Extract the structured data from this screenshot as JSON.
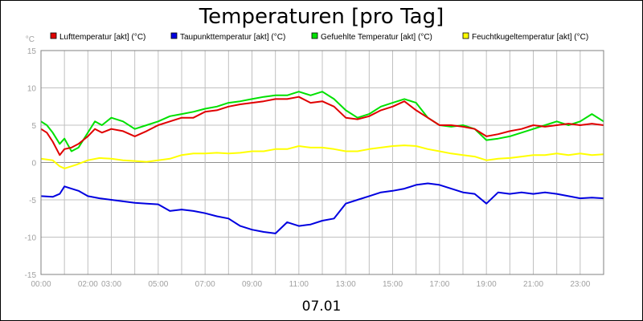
{
  "chart_data": {
    "type": "line",
    "title": "Temperaturen [pro Tag]",
    "subtitle": "07.01",
    "ylabel": "°C",
    "xlabel": "",
    "x_ticks": [
      "00:00",
      "02:00",
      "03:00",
      "05:00",
      "07:00",
      "09:00",
      "11:00",
      "13:00",
      "15:00",
      "17:00",
      "19:00",
      "21:00",
      "23:00"
    ],
    "x_tick_hours": [
      0,
      2,
      3,
      5,
      7,
      9,
      11,
      13,
      15,
      17,
      19,
      21,
      23
    ],
    "xlim_hours": [
      0,
      24
    ],
    "y_ticks": [
      15,
      10,
      5,
      0,
      -5,
      -10,
      -15
    ],
    "ylim": [
      -15,
      15
    ],
    "grid": true,
    "legend_position": "top",
    "series": [
      {
        "name": "Lufttemperatur [akt] (°C)",
        "color": "#e00000",
        "x": [
          0,
          0.25,
          0.5,
          0.8,
          1.0,
          1.3,
          1.6,
          2.0,
          2.3,
          2.6,
          3.0,
          3.5,
          4.0,
          4.5,
          5.0,
          5.5,
          6.0,
          6.5,
          7.0,
          7.5,
          8.0,
          8.5,
          9.0,
          9.5,
          10.0,
          10.5,
          11.0,
          11.5,
          12.0,
          12.5,
          13.0,
          13.5,
          14.0,
          14.5,
          15.0,
          15.5,
          16.0,
          16.5,
          17.0,
          17.5,
          18.0,
          18.5,
          19.0,
          19.5,
          20.0,
          20.5,
          21.0,
          21.5,
          22.0,
          22.5,
          23.0,
          23.5,
          24.0
        ],
        "y": [
          4.5,
          4.0,
          2.8,
          1.0,
          1.8,
          2.0,
          2.5,
          3.5,
          4.5,
          4.0,
          4.5,
          4.2,
          3.5,
          4.2,
          5.0,
          5.5,
          6.0,
          6.0,
          6.8,
          7.0,
          7.5,
          7.8,
          8.0,
          8.2,
          8.5,
          8.5,
          8.8,
          8.0,
          8.2,
          7.5,
          6.0,
          5.8,
          6.2,
          7.0,
          7.5,
          8.2,
          7.0,
          6.0,
          5.0,
          5.0,
          4.8,
          4.5,
          3.5,
          3.8,
          4.2,
          4.5,
          5.0,
          4.8,
          5.0,
          5.2,
          5.0,
          5.2,
          5.0
        ]
      },
      {
        "name": "Taupunkttemperatur [akt] (°C)",
        "color": "#0000e0",
        "x": [
          0,
          0.5,
          0.8,
          1.0,
          1.3,
          1.6,
          2.0,
          2.5,
          3.0,
          3.5,
          4.0,
          4.5,
          5.0,
          5.5,
          6.0,
          6.5,
          7.0,
          7.5,
          8.0,
          8.5,
          9.0,
          9.5,
          10.0,
          10.5,
          11.0,
          11.5,
          12.0,
          12.5,
          13.0,
          13.5,
          14.0,
          14.5,
          15.0,
          15.5,
          16.0,
          16.5,
          17.0,
          17.5,
          18.0,
          18.5,
          19.0,
          19.5,
          20.0,
          20.5,
          21.0,
          21.5,
          22.0,
          22.5,
          23.0,
          23.5,
          24.0
        ],
        "y": [
          -4.5,
          -4.6,
          -4.2,
          -3.2,
          -3.5,
          -3.8,
          -4.5,
          -4.8,
          -5.0,
          -5.2,
          -5.4,
          -5.5,
          -5.6,
          -6.5,
          -6.3,
          -6.5,
          -6.8,
          -7.2,
          -7.5,
          -8.5,
          -9.0,
          -9.3,
          -9.5,
          -8.0,
          -8.5,
          -8.3,
          -7.8,
          -7.5,
          -5.5,
          -5.0,
          -4.5,
          -4.0,
          -3.8,
          -3.5,
          -3.0,
          -2.8,
          -3.0,
          -3.5,
          -4.0,
          -4.2,
          -5.5,
          -4.0,
          -4.2,
          -4.0,
          -4.2,
          -4.0,
          -4.2,
          -4.5,
          -4.8,
          -4.7,
          -4.8
        ]
      },
      {
        "name": "Gefuehlte Temperatur [akt] (°C)",
        "color": "#00e000",
        "x": [
          0,
          0.25,
          0.5,
          0.8,
          1.0,
          1.3,
          1.6,
          2.0,
          2.3,
          2.6,
          3.0,
          3.5,
          4.0,
          4.5,
          5.0,
          5.5,
          6.0,
          6.5,
          7.0,
          7.5,
          8.0,
          8.5,
          9.0,
          9.5,
          10.0,
          10.5,
          11.0,
          11.5,
          12.0,
          12.5,
          13.0,
          13.5,
          14.0,
          14.5,
          15.0,
          15.5,
          16.0,
          16.5,
          17.0,
          17.5,
          18.0,
          18.5,
          19.0,
          19.5,
          20.0,
          20.5,
          21.0,
          21.5,
          22.0,
          22.5,
          23.0,
          23.5,
          24.0
        ],
        "y": [
          5.5,
          5.0,
          4.0,
          2.5,
          3.2,
          1.5,
          2.0,
          4.0,
          5.5,
          5.0,
          6.0,
          5.5,
          4.5,
          5.0,
          5.5,
          6.2,
          6.5,
          6.8,
          7.2,
          7.5,
          8.0,
          8.2,
          8.5,
          8.8,
          9.0,
          9.0,
          9.5,
          9.0,
          9.5,
          8.5,
          7.0,
          6.0,
          6.5,
          7.5,
          8.0,
          8.5,
          8.0,
          6.0,
          5.0,
          4.8,
          5.0,
          4.5,
          3.0,
          3.2,
          3.5,
          4.0,
          4.5,
          5.0,
          5.5,
          5.0,
          5.5,
          6.5,
          5.5
        ]
      },
      {
        "name": "Feuchtkugeltemperatur [akt] (°C)",
        "color": "#ffff00",
        "x": [
          0,
          0.5,
          0.8,
          1.0,
          1.5,
          2.0,
          2.5,
          3.0,
          3.5,
          4.0,
          4.5,
          5.0,
          5.5,
          6.0,
          6.5,
          7.0,
          7.5,
          8.0,
          8.5,
          9.0,
          9.5,
          10.0,
          10.5,
          11.0,
          11.5,
          12.0,
          12.5,
          13.0,
          13.5,
          14.0,
          14.5,
          15.0,
          15.5,
          16.0,
          16.5,
          17.0,
          17.5,
          18.0,
          18.5,
          19.0,
          19.5,
          20.0,
          20.5,
          21.0,
          21.5,
          22.0,
          22.5,
          23.0,
          23.5,
          24.0
        ],
        "y": [
          0.5,
          0.3,
          -0.5,
          -0.8,
          -0.3,
          0.3,
          0.6,
          0.5,
          0.3,
          0.2,
          0.1,
          0.3,
          0.5,
          1.0,
          1.2,
          1.2,
          1.3,
          1.2,
          1.3,
          1.5,
          1.5,
          1.8,
          1.8,
          2.2,
          2.0,
          2.0,
          1.8,
          1.5,
          1.5,
          1.8,
          2.0,
          2.2,
          2.3,
          2.2,
          1.8,
          1.5,
          1.2,
          1.0,
          0.8,
          0.3,
          0.5,
          0.6,
          0.8,
          1.0,
          1.0,
          1.2,
          1.0,
          1.2,
          1.0,
          1.1
        ]
      }
    ]
  }
}
